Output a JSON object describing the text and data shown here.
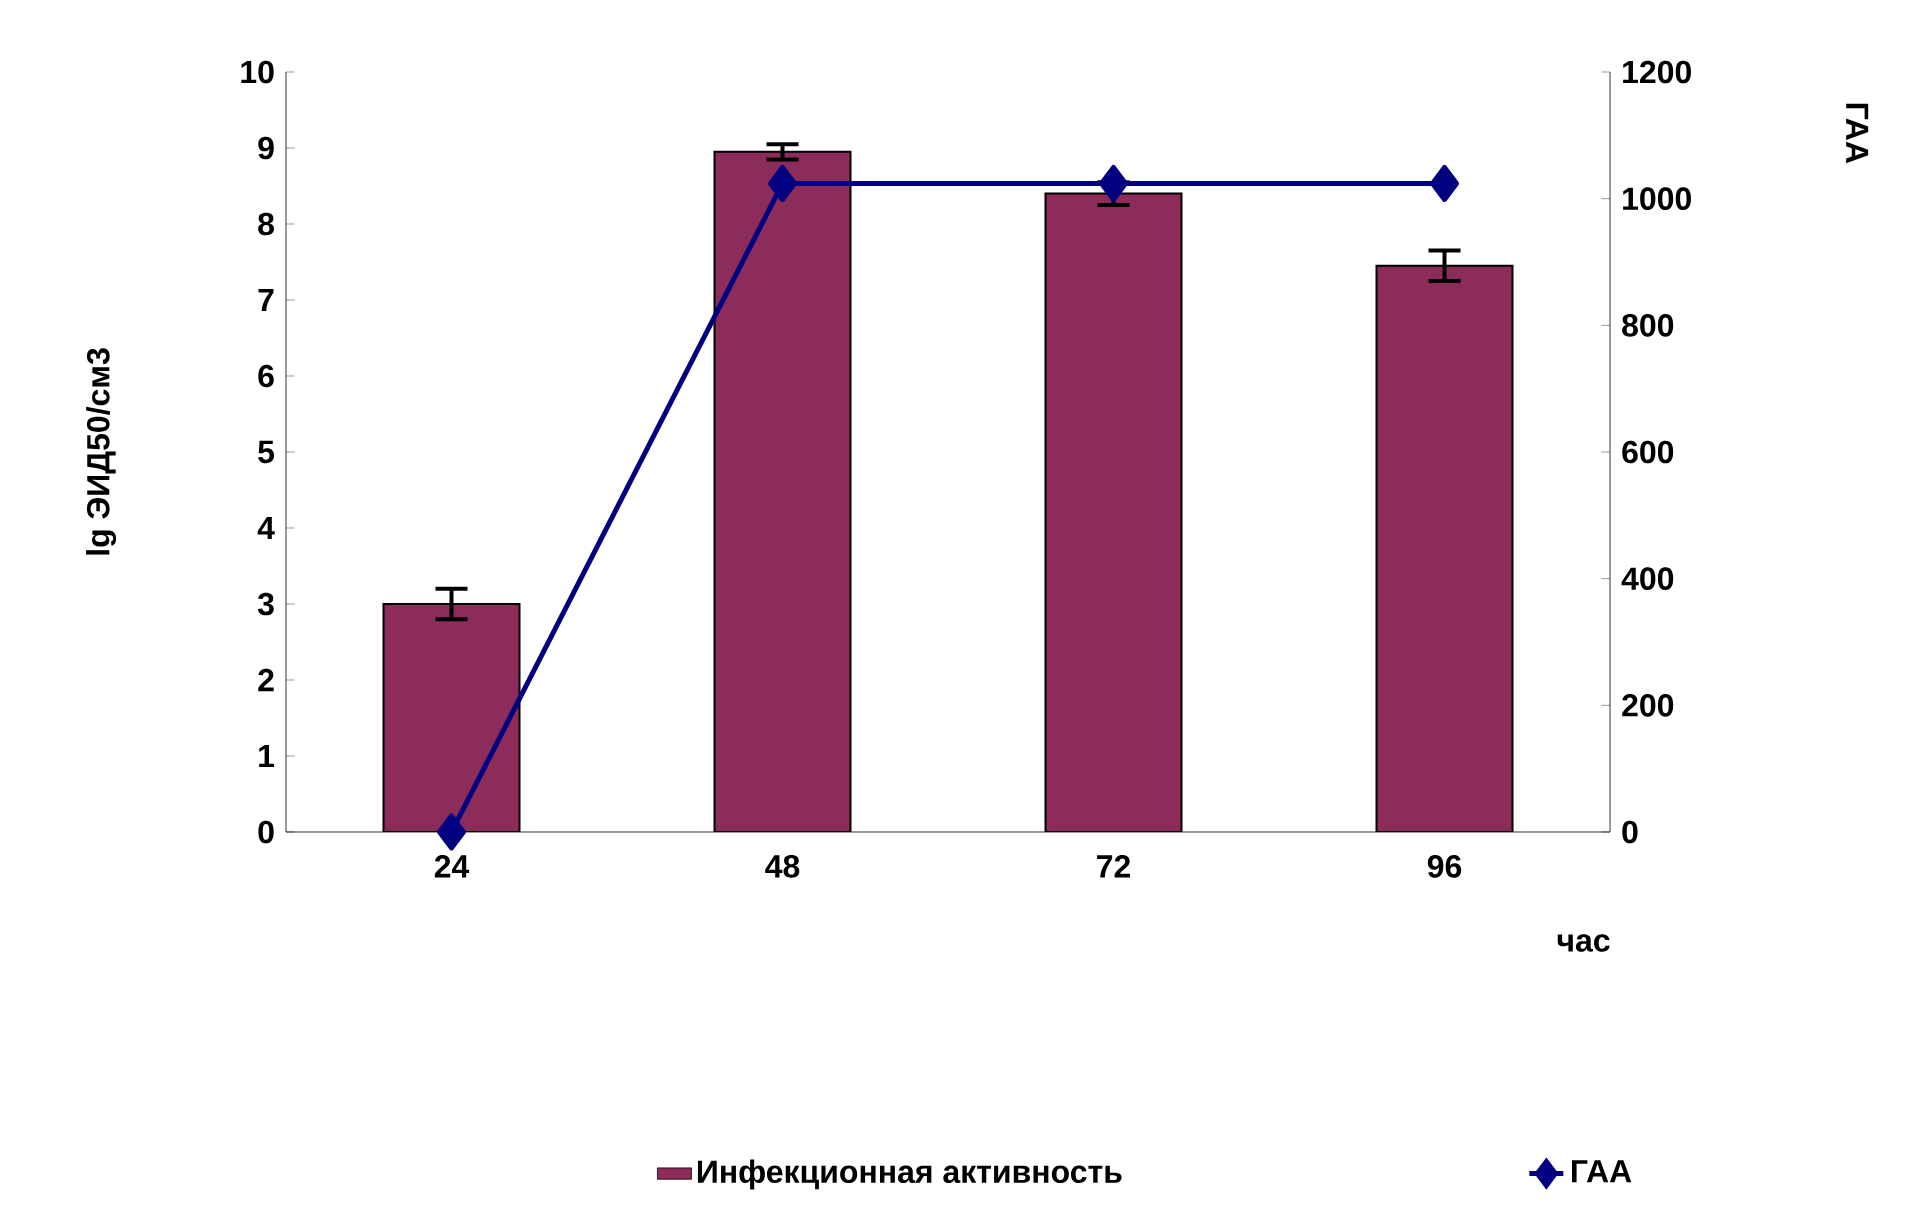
{
  "chart_data": {
    "type": "bar",
    "xlabel": "час",
    "ylabel": "lg ЭИД50/см3",
    "y2label": "ГАА",
    "categories": [
      "24",
      "48",
      "72",
      "96"
    ],
    "series": [
      {
        "name": "Инфекционная активность",
        "color": "#8b2c5a",
        "values": [
          3.0,
          8.95,
          8.4,
          7.45
        ],
        "errors": [
          0.2,
          0.1,
          0.15,
          0.2
        ]
      },
      {
        "name": "ГАА",
        "type": "line",
        "axis": "y2",
        "color": "#000080",
        "values": [
          0,
          1024,
          1024,
          1024
        ]
      }
    ],
    "ylim": [
      0,
      10
    ],
    "yticks": [
      0,
      1,
      2,
      3,
      4,
      5,
      6,
      7,
      8,
      9,
      10
    ],
    "y2lim": [
      0,
      1200
    ],
    "y2ticks": [
      0,
      200,
      400,
      600,
      800,
      1000,
      1200
    ],
    "marker": "diamond",
    "line_style": "solid",
    "legend": "bottom"
  }
}
